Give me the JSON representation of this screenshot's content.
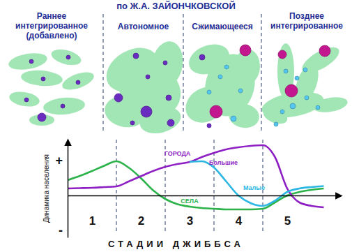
{
  "chart_data": {
    "type": "line",
    "title": "по Ж.А. ЗАЙОНЧКОВСКОЙ",
    "panels": [
      "Раннее интегрированное (добавлено)",
      "Автономное",
      "Сжимающееся",
      "Позднее интегрированное"
    ],
    "xlabel": "СТАДИИ ДЖИББСА",
    "ylabel": "Динамика населения",
    "x": [
      0,
      0.25,
      0.5,
      0.75,
      1,
      1.25,
      1.5,
      1.75,
      2,
      2.25,
      2.5,
      2.75,
      3,
      3.25,
      3.5,
      3.75,
      4,
      4.25,
      4.5,
      4.75,
      5,
      5.25
    ],
    "xlim": [
      0,
      5.6
    ],
    "xticks": [
      {
        "value": 0.5,
        "label": "1"
      },
      {
        "value": 1.5,
        "label": "2"
      },
      {
        "value": 2.5,
        "label": "3"
      },
      {
        "value": 3.5,
        "label": "4"
      },
      {
        "value": 4.5,
        "label": "5"
      }
    ],
    "ylim": [
      -1.2,
      1.6
    ],
    "yticks": [
      {
        "value": 1,
        "label": "+"
      },
      {
        "value": -1,
        "label": "-"
      }
    ],
    "annotations": [
      {
        "text": "ГОРОДА"
      }
    ],
    "series": [
      {
        "name": "СЕЛА",
        "color": "#2bb34a",
        "values": [
          0.44,
          0.56,
          0.7,
          0.85,
          0.98,
          0.8,
          0.5,
          0.15,
          -0.1,
          -0.25,
          -0.32,
          -0.36,
          -0.38,
          -0.4,
          -0.4,
          -0.4,
          -0.38,
          -0.2,
          0.0,
          0.1,
          0.16,
          0.2
        ]
      },
      {
        "name": "Большие",
        "color": "#8e1fc4",
        "values": [
          0.2,
          0.21,
          0.22,
          0.24,
          0.26,
          0.4,
          0.55,
          0.7,
          0.82,
          0.9,
          0.96,
          1.1,
          1.22,
          1.32,
          1.38,
          1.42,
          1.44,
          1.1,
          0.2,
          -0.2,
          -0.3,
          -0.34
        ]
      },
      {
        "name": "Малые",
        "color": "#2cb6e3",
        "values": [
          null,
          null,
          null,
          null,
          null,
          null,
          null,
          null,
          null,
          null,
          0.96,
          0.98,
          0.8,
          0.4,
          0.0,
          -0.22,
          -0.3,
          -0.15,
          0.1,
          0.2,
          0.24,
          0.27
        ]
      }
    ]
  }
}
